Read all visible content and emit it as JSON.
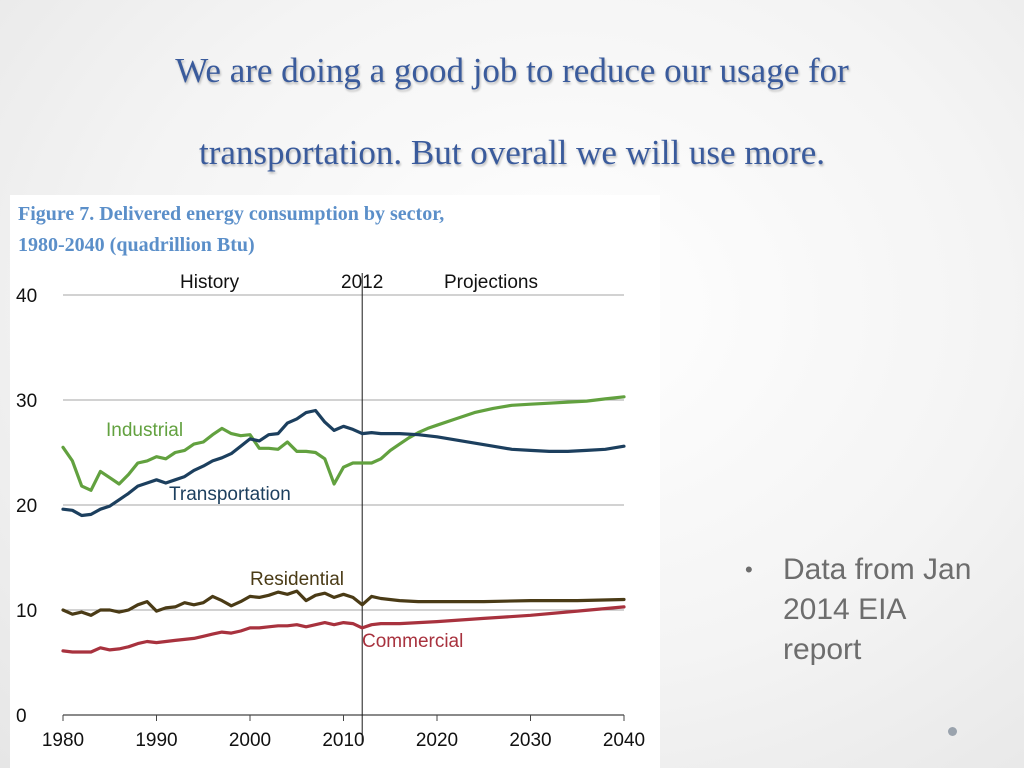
{
  "slide": {
    "title_line1": "We are doing a good job to reduce our usage for",
    "title_line2": "transportation.  But overall we will use more.",
    "bullet_text": "Data from Jan 2014 EIA report"
  },
  "colors": {
    "title": "#3a5b9c",
    "caption": "#5b8fc9",
    "bullet": "#6d6d6d"
  },
  "chart_data": {
    "type": "line",
    "caption_line1": "Figure 7. Delivered energy consumption by sector,",
    "caption_line2": "1980-2040 (quadrillion Btu)",
    "xlim": [
      1980,
      2040
    ],
    "ylim": [
      0,
      40
    ],
    "x_ticks": [
      1980,
      1990,
      2000,
      2010,
      2020,
      2030,
      2040
    ],
    "y_ticks": [
      0,
      10,
      20,
      30,
      40
    ],
    "grid": true,
    "annotations": {
      "divider_year": 2012,
      "history_label": "History",
      "divider_label": "2012",
      "projections_label": "Projections"
    },
    "series": [
      {
        "name": "Industrial",
        "color": "#62a13f",
        "points": [
          [
            1980,
            25.5
          ],
          [
            1981,
            24.2
          ],
          [
            1982,
            21.8
          ],
          [
            1983,
            21.4
          ],
          [
            1984,
            23.2
          ],
          [
            1985,
            22.6
          ],
          [
            1986,
            22.0
          ],
          [
            1987,
            22.9
          ],
          [
            1988,
            24.0
          ],
          [
            1989,
            24.2
          ],
          [
            1990,
            24.6
          ],
          [
            1991,
            24.4
          ],
          [
            1992,
            25.0
          ],
          [
            1993,
            25.2
          ],
          [
            1994,
            25.8
          ],
          [
            1995,
            26.0
          ],
          [
            1996,
            26.7
          ],
          [
            1997,
            27.3
          ],
          [
            1998,
            26.8
          ],
          [
            1999,
            26.6
          ],
          [
            2000,
            26.7
          ],
          [
            2001,
            25.4
          ],
          [
            2002,
            25.4
          ],
          [
            2003,
            25.3
          ],
          [
            2004,
            26.0
          ],
          [
            2005,
            25.1
          ],
          [
            2006,
            25.1
          ],
          [
            2007,
            25.0
          ],
          [
            2008,
            24.4
          ],
          [
            2009,
            22.0
          ],
          [
            2010,
            23.6
          ],
          [
            2011,
            24.0
          ],
          [
            2012,
            24.0
          ],
          [
            2013,
            24.0
          ],
          [
            2014,
            24.4
          ],
          [
            2015,
            25.2
          ],
          [
            2016,
            25.8
          ],
          [
            2017,
            26.4
          ],
          [
            2018,
            26.9
          ],
          [
            2019,
            27.3
          ],
          [
            2020,
            27.6
          ],
          [
            2022,
            28.2
          ],
          [
            2024,
            28.8
          ],
          [
            2026,
            29.2
          ],
          [
            2028,
            29.5
          ],
          [
            2030,
            29.6
          ],
          [
            2032,
            29.7
          ],
          [
            2034,
            29.8
          ],
          [
            2036,
            29.9
          ],
          [
            2038,
            30.1
          ],
          [
            2040,
            30.3
          ]
        ]
      },
      {
        "name": "Transportation",
        "color": "#1c3f5e",
        "points": [
          [
            1980,
            19.6
          ],
          [
            1981,
            19.5
          ],
          [
            1982,
            19.0
          ],
          [
            1983,
            19.1
          ],
          [
            1984,
            19.6
          ],
          [
            1985,
            19.9
          ],
          [
            1986,
            20.5
          ],
          [
            1987,
            21.1
          ],
          [
            1988,
            21.8
          ],
          [
            1989,
            22.1
          ],
          [
            1990,
            22.4
          ],
          [
            1991,
            22.1
          ],
          [
            1992,
            22.4
          ],
          [
            1993,
            22.7
          ],
          [
            1994,
            23.3
          ],
          [
            1995,
            23.7
          ],
          [
            1996,
            24.2
          ],
          [
            1997,
            24.5
          ],
          [
            1998,
            24.9
          ],
          [
            1999,
            25.6
          ],
          [
            2000,
            26.3
          ],
          [
            2001,
            26.1
          ],
          [
            2002,
            26.7
          ],
          [
            2003,
            26.8
          ],
          [
            2004,
            27.8
          ],
          [
            2005,
            28.2
          ],
          [
            2006,
            28.8
          ],
          [
            2007,
            29.0
          ],
          [
            2008,
            27.9
          ],
          [
            2009,
            27.1
          ],
          [
            2010,
            27.5
          ],
          [
            2011,
            27.2
          ],
          [
            2012,
            26.8
          ],
          [
            2013,
            26.9
          ],
          [
            2014,
            26.8
          ],
          [
            2016,
            26.8
          ],
          [
            2018,
            26.7
          ],
          [
            2020,
            26.5
          ],
          [
            2022,
            26.2
          ],
          [
            2024,
            25.9
          ],
          [
            2026,
            25.6
          ],
          [
            2028,
            25.3
          ],
          [
            2030,
            25.2
          ],
          [
            2032,
            25.1
          ],
          [
            2034,
            25.1
          ],
          [
            2036,
            25.2
          ],
          [
            2038,
            25.3
          ],
          [
            2040,
            25.6
          ]
        ]
      },
      {
        "name": "Residential",
        "color": "#4a3b16",
        "points": [
          [
            1980,
            10.0
          ],
          [
            1981,
            9.6
          ],
          [
            1982,
            9.8
          ],
          [
            1983,
            9.5
          ],
          [
            1984,
            10.0
          ],
          [
            1985,
            10.0
          ],
          [
            1986,
            9.8
          ],
          [
            1987,
            10.0
          ],
          [
            1988,
            10.5
          ],
          [
            1989,
            10.8
          ],
          [
            1990,
            9.9
          ],
          [
            1991,
            10.2
          ],
          [
            1992,
            10.3
          ],
          [
            1993,
            10.7
          ],
          [
            1994,
            10.5
          ],
          [
            1995,
            10.7
          ],
          [
            1996,
            11.3
          ],
          [
            1997,
            10.9
          ],
          [
            1998,
            10.4
          ],
          [
            1999,
            10.8
          ],
          [
            2000,
            11.3
          ],
          [
            2001,
            11.2
          ],
          [
            2002,
            11.4
          ],
          [
            2003,
            11.7
          ],
          [
            2004,
            11.5
          ],
          [
            2005,
            11.8
          ],
          [
            2006,
            10.9
          ],
          [
            2007,
            11.4
          ],
          [
            2008,
            11.6
          ],
          [
            2009,
            11.2
          ],
          [
            2010,
            11.5
          ],
          [
            2011,
            11.2
          ],
          [
            2012,
            10.5
          ],
          [
            2013,
            11.3
          ],
          [
            2014,
            11.1
          ],
          [
            2016,
            10.9
          ],
          [
            2018,
            10.8
          ],
          [
            2020,
            10.8
          ],
          [
            2025,
            10.8
          ],
          [
            2030,
            10.9
          ],
          [
            2035,
            10.9
          ],
          [
            2040,
            11.0
          ]
        ]
      },
      {
        "name": "Commercial",
        "color": "#a8323e",
        "points": [
          [
            1980,
            6.1
          ],
          [
            1981,
            6.0
          ],
          [
            1982,
            6.0
          ],
          [
            1983,
            6.0
          ],
          [
            1984,
            6.4
          ],
          [
            1985,
            6.2
          ],
          [
            1986,
            6.3
          ],
          [
            1987,
            6.5
          ],
          [
            1988,
            6.8
          ],
          [
            1989,
            7.0
          ],
          [
            1990,
            6.9
          ],
          [
            1991,
            7.0
          ],
          [
            1992,
            7.1
          ],
          [
            1993,
            7.2
          ],
          [
            1994,
            7.3
          ],
          [
            1995,
            7.5
          ],
          [
            1996,
            7.7
          ],
          [
            1997,
            7.9
          ],
          [
            1998,
            7.8
          ],
          [
            1999,
            8.0
          ],
          [
            2000,
            8.3
          ],
          [
            2001,
            8.3
          ],
          [
            2002,
            8.4
          ],
          [
            2003,
            8.5
          ],
          [
            2004,
            8.5
          ],
          [
            2005,
            8.6
          ],
          [
            2006,
            8.4
          ],
          [
            2007,
            8.6
          ],
          [
            2008,
            8.8
          ],
          [
            2009,
            8.6
          ],
          [
            2010,
            8.8
          ],
          [
            2011,
            8.7
          ],
          [
            2012,
            8.3
          ],
          [
            2013,
            8.6
          ],
          [
            2014,
            8.7
          ],
          [
            2016,
            8.7
          ],
          [
            2018,
            8.8
          ],
          [
            2020,
            8.9
          ],
          [
            2025,
            9.2
          ],
          [
            2030,
            9.5
          ],
          [
            2035,
            9.9
          ],
          [
            2040,
            10.3
          ]
        ]
      }
    ]
  }
}
